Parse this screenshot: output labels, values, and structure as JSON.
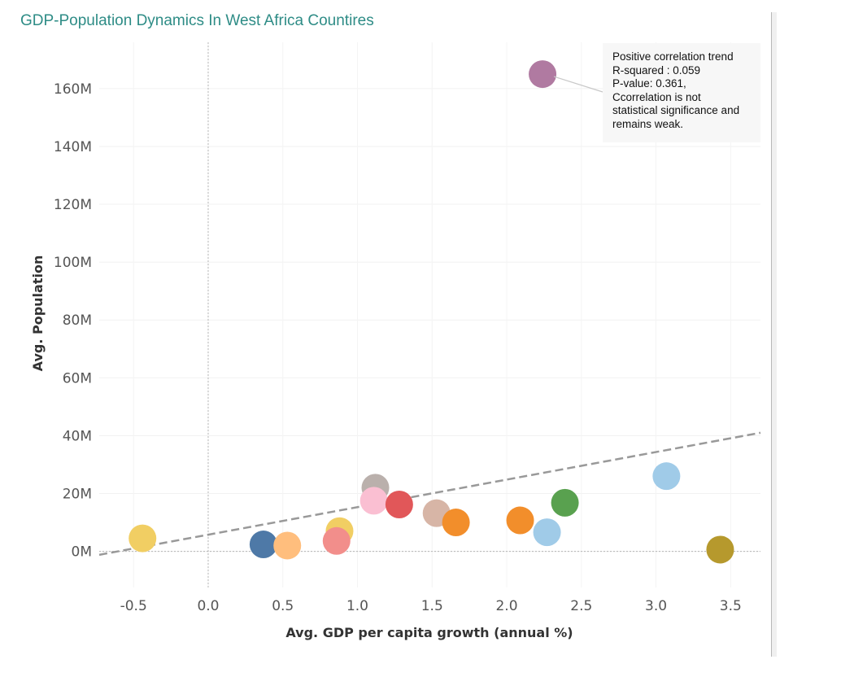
{
  "chart_data": {
    "type": "scatter",
    "title": "GDP-Population Dynamics In West Africa Countires",
    "xlabel": "Avg. GDP per capita growth (annual %)",
    "ylabel": "Avg. Population",
    "xlim": [
      -0.73,
      3.7
    ],
    "ylim": [
      -12500000,
      176000000
    ],
    "x_ticks": [
      {
        "value": -0.5,
        "label": "-0.5"
      },
      {
        "value": 0.0,
        "label": "0.0"
      },
      {
        "value": 0.5,
        "label": "0.5"
      },
      {
        "value": 1.0,
        "label": "1.0"
      },
      {
        "value": 1.5,
        "label": "1.5"
      },
      {
        "value": 2.0,
        "label": "2.0"
      },
      {
        "value": 2.5,
        "label": "2.5"
      },
      {
        "value": 3.0,
        "label": "3.0"
      },
      {
        "value": 3.5,
        "label": "3.5"
      }
    ],
    "y_ticks": [
      {
        "value": 0,
        "label": "0M"
      },
      {
        "value": 20000000,
        "label": "20M"
      },
      {
        "value": 40000000,
        "label": "40M"
      },
      {
        "value": 60000000,
        "label": "60M"
      },
      {
        "value": 80000000,
        "label": "80M"
      },
      {
        "value": 100000000,
        "label": "100M"
      },
      {
        "value": 120000000,
        "label": "120M"
      },
      {
        "value": 140000000,
        "label": "140M"
      },
      {
        "value": 160000000,
        "label": "160M"
      }
    ],
    "grid": true,
    "points": [
      {
        "x": 2.24,
        "y": 165000000,
        "color": "#b07aa1"
      },
      {
        "x": 3.07,
        "y": 26000000,
        "color": "#a0cbe8"
      },
      {
        "x": 1.12,
        "y": 22000000,
        "color": "#bab0ac"
      },
      {
        "x": 1.11,
        "y": 17500000,
        "color": "#fabfd2"
      },
      {
        "x": 1.28,
        "y": 16200000,
        "color": "#e15759"
      },
      {
        "x": 2.39,
        "y": 16800000,
        "color": "#59a14f"
      },
      {
        "x": 1.53,
        "y": 13200000,
        "color": "#d7b5a6"
      },
      {
        "x": 1.66,
        "y": 10000000,
        "color": "#f28e2b"
      },
      {
        "x": 2.09,
        "y": 10700000,
        "color": "#f28e2b"
      },
      {
        "x": 0.88,
        "y": 7000000,
        "color": "#f1ce63"
      },
      {
        "x": 2.27,
        "y": 6600000,
        "color": "#a0cbe8"
      },
      {
        "x": -0.44,
        "y": 4500000,
        "color": "#f1ce63"
      },
      {
        "x": 0.86,
        "y": 3600000,
        "color": "#f28e8b"
      },
      {
        "x": 0.37,
        "y": 2400000,
        "color": "#4e79a7"
      },
      {
        "x": 0.53,
        "y": 2000000,
        "color": "#ffbe7d"
      },
      {
        "x": 3.43,
        "y": 600000,
        "color": "#b6992d"
      }
    ],
    "trend_line": {
      "x": [
        -0.73,
        3.7
      ],
      "y": [
        -1200000,
        41000000
      ],
      "color": "#999999",
      "style": "dashed"
    },
    "annotation": {
      "lines": [
        "Positive correlation trend",
        "R-squared : 0.059",
        "P-value:  0.361,",
        "Ccorrelation is not",
        "statistical significance and",
        "remains weak."
      ],
      "points_to_index": 0
    }
  }
}
